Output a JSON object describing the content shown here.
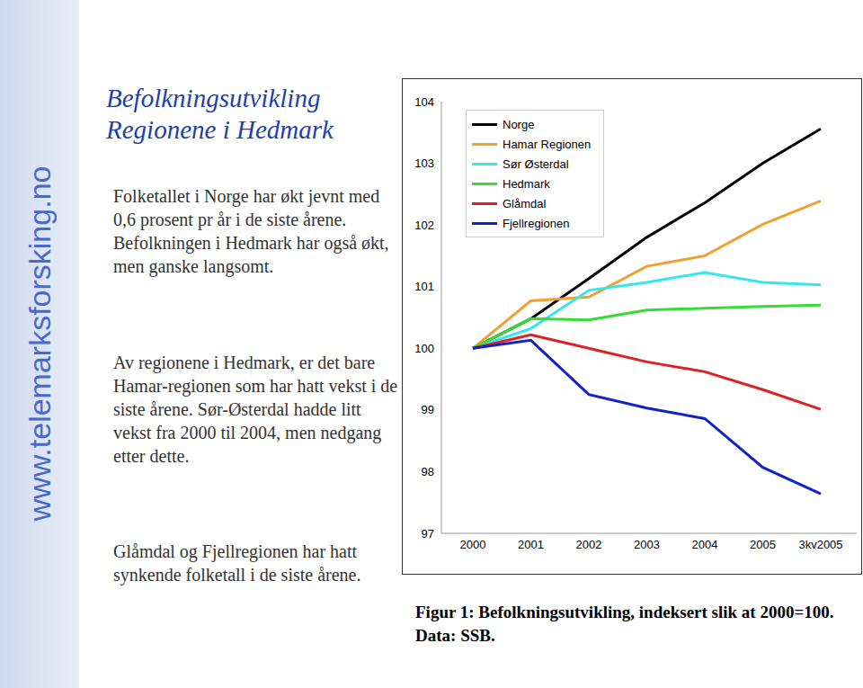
{
  "slide": {
    "title": [
      "Befolkningsutvikling",
      "Regionene i Hedmark"
    ],
    "paragraphs": [
      "Folketallet i Norge har økt jevnt med 0,6 prosent pr år i de siste årene. Befolkningen i Hedmark har også økt, men ganske langsomt.",
      "Av regionene i Hedmark, er det bare Hamar-regionen som har hatt vekst i de siste årene. Sør-Østerdal hadde litt vekst fra 2000 til 2004, men nedgang etter dette.",
      "Glåmdal og Fjellregionen har hatt synkende folketall i de siste årene."
    ],
    "caption": "Figur 1: Befolkningsutvikling, indeksert slik at 2000=100. Data: SSB.",
    "watermark": "www.telemarksforsking.no"
  },
  "chart_data": {
    "type": "line",
    "categories": [
      "2000",
      "2001",
      "2002",
      "2003",
      "2004",
      "2005",
      "3kv2005"
    ],
    "ylim": [
      97,
      104
    ],
    "yticks": [
      97,
      98,
      99,
      100,
      101,
      102,
      103,
      104
    ],
    "grid": false,
    "legend": "top-left",
    "series": [
      {
        "name": "Norge",
        "color": "#000000",
        "values": [
          100,
          100.48,
          101.13,
          101.8,
          102.36,
          103.0,
          103.56
        ]
      },
      {
        "name": "Hamar Regionen",
        "color": "#f0a030",
        "values": [
          100,
          100.77,
          100.83,
          101.33,
          101.5,
          102.01,
          102.39
        ]
      },
      {
        "name": "Sør Østerdal",
        "color": "#33e6f0",
        "values": [
          100,
          100.32,
          100.94,
          101.07,
          101.23,
          101.07,
          101.03
        ]
      },
      {
        "name": "Hedmark",
        "color": "#33dd33",
        "values": [
          100,
          100.48,
          100.46,
          100.62,
          100.65,
          100.68,
          100.7
        ]
      },
      {
        "name": "Glåmdal",
        "color": "#dd2222",
        "values": [
          100,
          100.22,
          100.0,
          99.78,
          99.62,
          99.33,
          99.01
        ]
      },
      {
        "name": "Fjellregionen",
        "color": "#1122cc",
        "values": [
          100,
          100.13,
          99.25,
          99.03,
          98.86,
          98.07,
          97.64
        ]
      }
    ]
  }
}
